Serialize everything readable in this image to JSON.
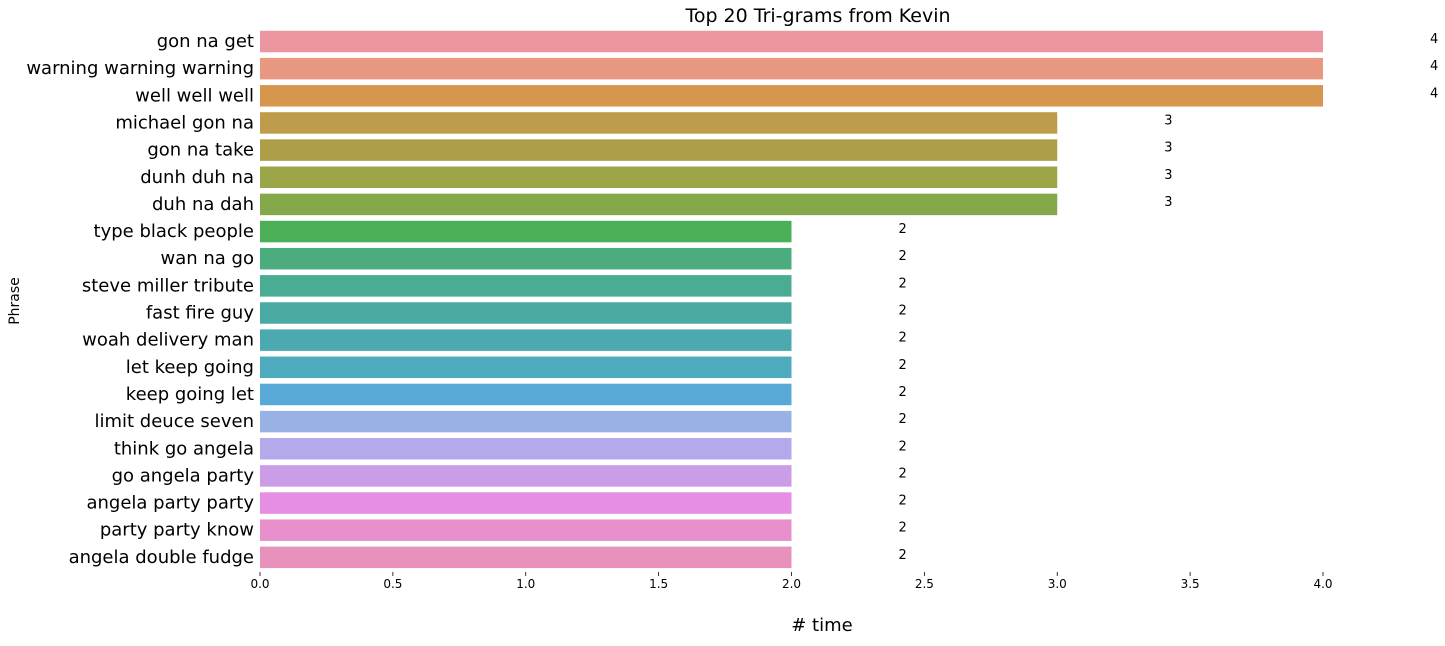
{
  "chart_data": {
    "type": "bar",
    "orientation": "horizontal",
    "title": "Top 20 Tri-grams from Kevin",
    "xlabel": "# time",
    "ylabel": "Phrase",
    "xlim": [
      0,
      4.0
    ],
    "xticks": [
      "0.0",
      "0.5",
      "1.0",
      "1.5",
      "2.0",
      "2.5",
      "3.0",
      "3.5",
      "4.0"
    ],
    "grid": false,
    "legend": "none",
    "categories": [
      "gon na get",
      "warning warning warning",
      "well well well",
      "michael gon na",
      "gon na take",
      "dunh duh na",
      "duh na dah",
      "type black people",
      "wan na go",
      "steve miller tribute",
      "fast fire guy",
      "woah delivery man",
      "let keep going",
      "keep going let",
      "limit deuce seven",
      "think go angela",
      "go angela party",
      "angela party party",
      "party party know",
      "angela double fudge"
    ],
    "values": [
      4,
      4,
      4,
      3,
      3,
      3,
      3,
      2,
      2,
      2,
      2,
      2,
      2,
      2,
      2,
      2,
      2,
      2,
      2,
      2
    ],
    "colors": [
      "#ec96a0",
      "#e89781",
      "#d7964e",
      "#bf9c4b",
      "#ad9e48",
      "#9ca548",
      "#84a84a",
      "#4aaf56",
      "#4bac7e",
      "#4aac93",
      "#4aaaa3",
      "#4baaaf",
      "#4eaabd",
      "#58a9d6",
      "#98b2e6",
      "#b4a9eb",
      "#cb9de6",
      "#e68ee4",
      "#e790cc",
      "#e891bb"
    ]
  }
}
